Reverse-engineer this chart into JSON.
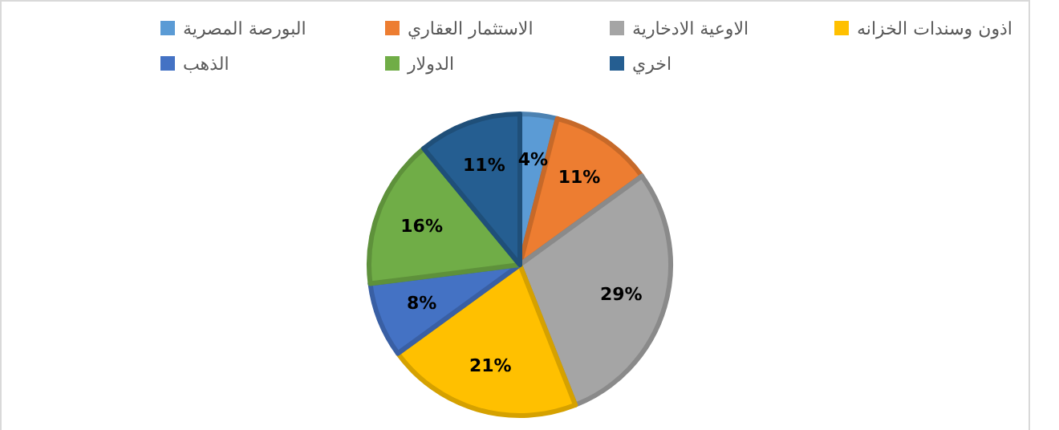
{
  "chart_data": {
    "type": "pie",
    "categories": [
      "البورصة المصرية",
      "الاستثمار العقاري",
      "الاوعية الادخارية",
      "اذون وسندات الخزانه",
      "الذهب",
      "الدولار",
      "اخري"
    ],
    "values": [
      4,
      11,
      29,
      21,
      8,
      16,
      11
    ],
    "colors": [
      "#5b9bd5",
      "#ed7d31",
      "#a5a5a5",
      "#ffc000",
      "#4472c4",
      "#70ad47",
      "#255e91"
    ],
    "value_labels": [
      "4%",
      "11%",
      "29%",
      "21%",
      "8%",
      "16%",
      "11%"
    ],
    "legend": "top"
  }
}
